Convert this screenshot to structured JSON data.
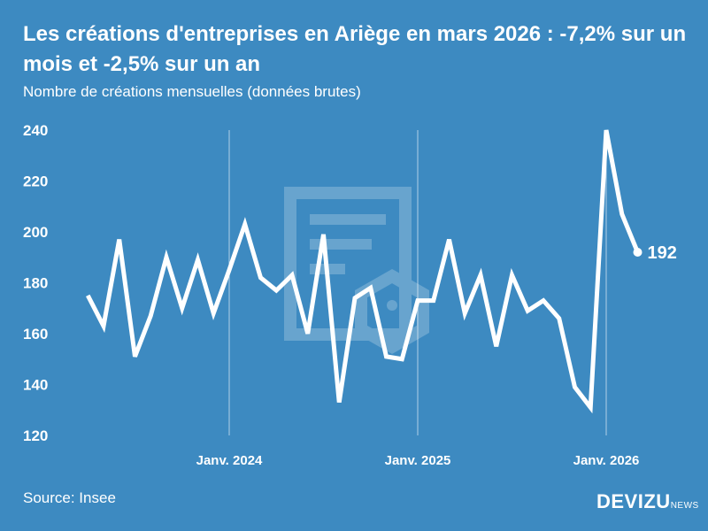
{
  "header": {
    "title": "Les créations d'entreprises en Ariège en mars 2026 : -7,2% sur un mois et -2,5% sur un an",
    "subtitle": "Nombre de créations mensuelles (données brutes)"
  },
  "footer": {
    "source": "Source: Insee",
    "logo_main": "DEVIZU",
    "logo_small": "NEWS"
  },
  "colors": {
    "background": "#3d8ac1",
    "line": "#ffffff"
  },
  "chart_data": {
    "type": "line",
    "title": "Les créations d'entreprises en Ariège en mars 2026 : -7,2% sur un mois et -2,5% sur un an",
    "subtitle": "Nombre de créations mensuelles (données brutes)",
    "ylim": [
      120,
      240
    ],
    "yticks": [
      120,
      140,
      160,
      180,
      200,
      220,
      240
    ],
    "xticks": [
      {
        "label": "Janv. 2024",
        "x": "2024-01"
      },
      {
        "label": "Janv. 2025",
        "x": "2025-01"
      },
      {
        "label": "Janv. 2026",
        "x": "2026-01"
      }
    ],
    "grid": "vertical lines at January",
    "x": [
      "2023-04",
      "2023-05",
      "2023-06",
      "2023-07",
      "2023-08",
      "2023-09",
      "2023-10",
      "2023-11",
      "2023-12",
      "2024-01",
      "2024-02",
      "2024-03",
      "2024-04",
      "2024-05",
      "2024-06",
      "2024-07",
      "2024-08",
      "2024-09",
      "2024-10",
      "2024-11",
      "2024-12",
      "2025-01",
      "2025-02",
      "2025-03",
      "2025-04",
      "2025-05",
      "2025-06",
      "2025-07",
      "2025-08",
      "2025-09",
      "2025-10",
      "2025-11",
      "2025-12",
      "2026-01",
      "2026-02",
      "2026-03"
    ],
    "values": [
      175,
      163,
      197,
      151,
      167,
      190,
      170,
      189,
      168,
      185,
      203,
      182,
      177,
      183,
      160,
      199,
      133,
      174,
      178,
      151,
      150,
      173,
      173,
      197,
      168,
      183,
      155,
      183,
      169,
      173,
      166,
      139,
      131,
      240,
      207,
      192
    ],
    "last_label": "192"
  }
}
